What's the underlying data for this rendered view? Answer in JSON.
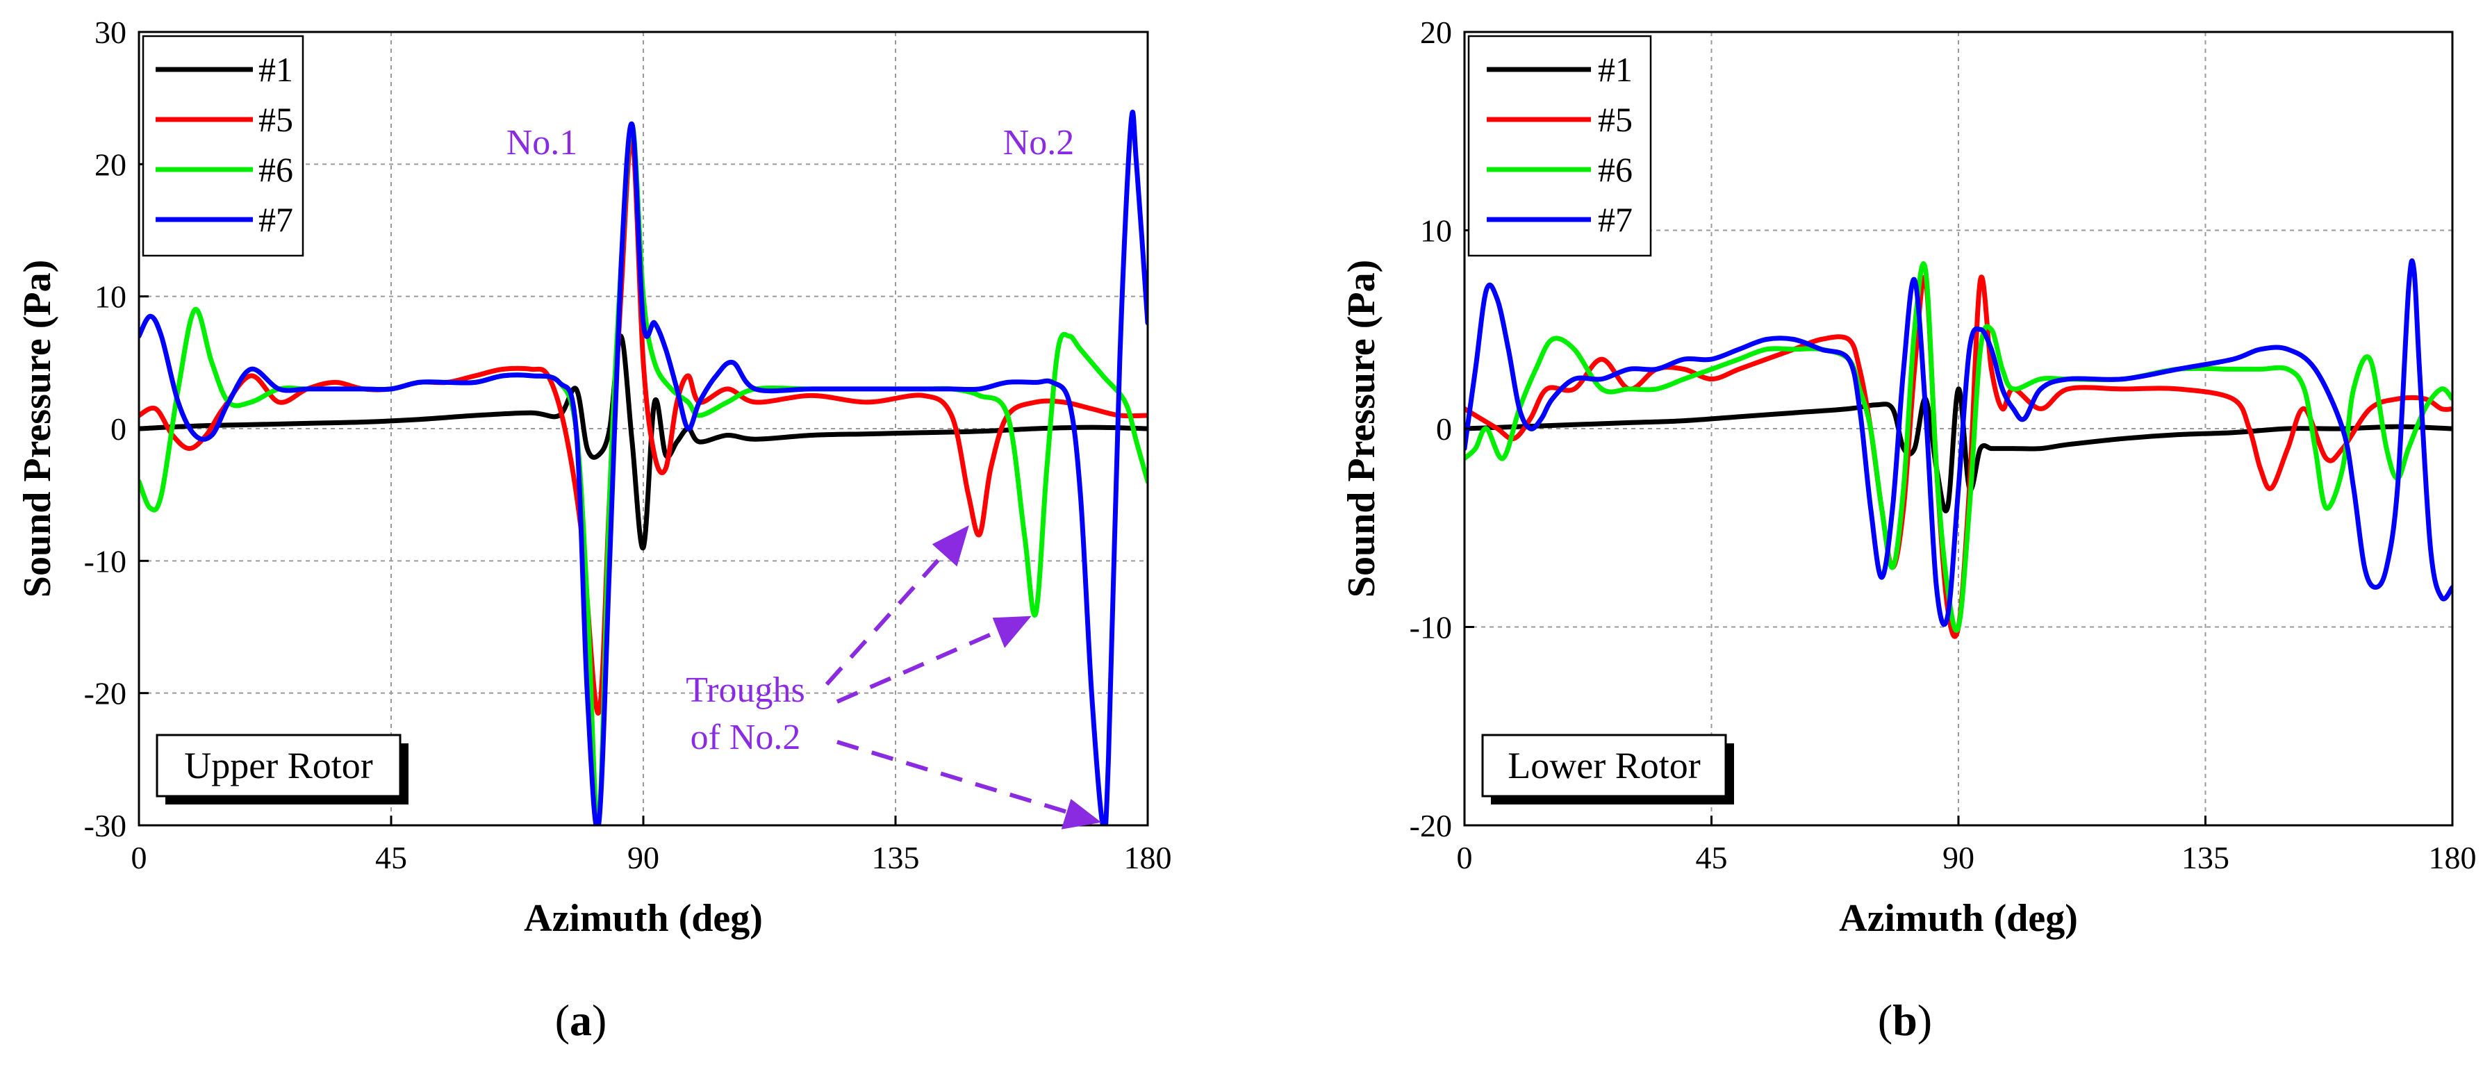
{
  "figure": {
    "caption_a": {
      "open": "(",
      "letter": "a",
      "close": ")"
    },
    "caption_b": {
      "open": "(",
      "letter": "b",
      "close": ")"
    }
  },
  "chart_data": [
    {
      "type": "line",
      "panel": "a",
      "title": "Upper Rotor",
      "xlabel": "Azimuth (deg)",
      "ylabel": "Sound Pressure (Pa)",
      "xlim": [
        0,
        180
      ],
      "ylim": [
        -30,
        30
      ],
      "xticks": [
        0,
        45,
        90,
        135,
        180
      ],
      "yticks": [
        -30,
        -20,
        -10,
        0,
        10,
        20,
        30
      ],
      "grid": true,
      "legend": "top-left",
      "annotations": {
        "peak1": "No.1",
        "peak2": "No.2",
        "troughs_line1": "Troughs",
        "troughs_line2": "of No.2"
      },
      "series": [
        {
          "name": "#1",
          "color": "#000000",
          "x": [
            0,
            10,
            20,
            30,
            40,
            50,
            60,
            70,
            75,
            78,
            80,
            82,
            84,
            86,
            88,
            90,
            92,
            94,
            96,
            98,
            100,
            105,
            110,
            120,
            130,
            140,
            150,
            160,
            170,
            180
          ],
          "y": [
            0,
            0.2,
            0.3,
            0.4,
            0.5,
            0.7,
            1.0,
            1.2,
            1.0,
            3.0,
            -1.5,
            -2,
            0,
            7,
            -1,
            -9,
            2,
            -2,
            -1,
            0,
            -1,
            -0.5,
            -0.8,
            -0.5,
            -0.4,
            -0.3,
            -0.2,
            0,
            0.1,
            0
          ]
        },
        {
          "name": "#5",
          "color": "#ff0000",
          "x": [
            0,
            3,
            6,
            9,
            12,
            15,
            20,
            25,
            30,
            35,
            40,
            45,
            50,
            55,
            60,
            65,
            70,
            73,
            76,
            79,
            82,
            84,
            86,
            88,
            90,
            92,
            94,
            96,
            98,
            100,
            105,
            110,
            120,
            130,
            140,
            145,
            148,
            150,
            152,
            155,
            160,
            165,
            170,
            175,
            180
          ],
          "y": [
            1,
            1.5,
            -0.5,
            -1.5,
            -0.5,
            1.5,
            4,
            2,
            3,
            3.5,
            3,
            3,
            3.5,
            3.5,
            4,
            4.5,
            4.5,
            4,
            0,
            -8,
            -21.5,
            -5,
            10,
            22,
            5,
            -2,
            -3,
            2,
            4,
            2,
            3,
            2,
            2.5,
            2,
            2.5,
            1,
            -5,
            -8,
            -3,
            1,
            2,
            2,
            1.5,
            1,
            1
          ]
        },
        {
          "name": "#6",
          "color": "#00ee00",
          "x": [
            0,
            2,
            4,
            7,
            10,
            13,
            16,
            20,
            25,
            30,
            35,
            40,
            45,
            50,
            55,
            60,
            65,
            70,
            75,
            78,
            80,
            82,
            84,
            86,
            88,
            90,
            92,
            95,
            98,
            100,
            105,
            110,
            120,
            130,
            140,
            145,
            150,
            155,
            158,
            160,
            162,
            164,
            166,
            168,
            172,
            176,
            178,
            180
          ],
          "y": [
            -4,
            -6,
            -5,
            3,
            9,
            5,
            2,
            2,
            3,
            3,
            3,
            3,
            3,
            3.5,
            3.5,
            3.5,
            4,
            4,
            3.5,
            0,
            -13,
            -30,
            -5,
            12,
            23,
            10,
            5,
            3,
            2,
            1,
            2,
            3,
            3,
            3,
            3,
            3,
            2.5,
            1,
            -8,
            -14,
            -3,
            6,
            7,
            6,
            4,
            2,
            -1,
            -4
          ]
        },
        {
          "name": "#7",
          "color": "#0000ff",
          "x": [
            0,
            2,
            4,
            7,
            10,
            13,
            16,
            20,
            25,
            30,
            35,
            40,
            45,
            50,
            55,
            60,
            65,
            70,
            75,
            78,
            80,
            82,
            84,
            86,
            88,
            90,
            92,
            94,
            96,
            98,
            100,
            103,
            106,
            110,
            120,
            130,
            140,
            145,
            150,
            155,
            160,
            163,
            166,
            168,
            170,
            172,
            173,
            175,
            177,
            178,
            180
          ],
          "y": [
            7,
            8.5,
            7,
            2,
            -0.5,
            -0.5,
            2,
            4.5,
            3,
            3,
            3,
            3,
            3,
            3.5,
            3.5,
            3.5,
            4,
            4,
            3.5,
            0,
            -20,
            -30,
            -10,
            12,
            23,
            8,
            8,
            6,
            3,
            0,
            2,
            4,
            5,
            3,
            3,
            3,
            3,
            3,
            3,
            3.5,
            3.5,
            3.5,
            2,
            -5,
            -20,
            -30,
            -25,
            5,
            23,
            20,
            8
          ]
        }
      ]
    },
    {
      "type": "line",
      "panel": "b",
      "title": "Lower Rotor",
      "xlabel": "Azimuth (deg)",
      "ylabel": "Sound Pressure (Pa)",
      "xlim": [
        0,
        180
      ],
      "ylim": [
        -20,
        20
      ],
      "xticks": [
        0,
        45,
        90,
        135,
        180
      ],
      "yticks": [
        -20,
        -10,
        0,
        10,
        20
      ],
      "grid": true,
      "legend": "top-left",
      "series": [
        {
          "name": "#1",
          "color": "#000000",
          "x": [
            0,
            10,
            20,
            30,
            40,
            50,
            60,
            70,
            75,
            78,
            80,
            82,
            84,
            86,
            88,
            90,
            92,
            94,
            96,
            98,
            100,
            105,
            110,
            120,
            130,
            140,
            150,
            160,
            170,
            180
          ],
          "y": [
            0,
            0.1,
            0.2,
            0.3,
            0.4,
            0.6,
            0.8,
            1.0,
            1.2,
            1.0,
            -1,
            -1,
            1.5,
            -2,
            -4,
            2,
            -3,
            -1,
            -1,
            -1,
            -1,
            -1,
            -0.8,
            -0.5,
            -0.3,
            -0.2,
            0,
            0,
            0.1,
            0
          ]
        },
        {
          "name": "#5",
          "color": "#ff0000",
          "x": [
            0,
            3,
            6,
            9,
            12,
            15,
            20,
            25,
            30,
            35,
            40,
            45,
            50,
            55,
            60,
            65,
            70,
            72,
            74,
            76,
            78,
            80,
            82,
            84,
            86,
            88,
            90,
            92,
            94,
            96,
            98,
            100,
            105,
            110,
            120,
            130,
            140,
            143,
            145,
            147,
            150,
            153,
            157,
            160,
            165,
            170,
            175,
            178,
            180
          ],
          "y": [
            1,
            0.5,
            0,
            -0.5,
            0.5,
            2,
            2,
            3.5,
            2,
            3,
            3,
            2.5,
            3,
            3.5,
            4,
            4.5,
            4.5,
            3,
            0,
            -4,
            -7,
            -4,
            3,
            7.5,
            -2,
            -9,
            -10,
            -3,
            7.5,
            3,
            1,
            2,
            1,
            2,
            2,
            2,
            1.5,
            0,
            -2,
            -3,
            -1,
            1,
            -1.5,
            -1,
            1,
            1.5,
            1.5,
            1,
            1
          ]
        },
        {
          "name": "#6",
          "color": "#00ee00",
          "x": [
            0,
            2,
            4,
            7,
            10,
            13,
            16,
            20,
            25,
            30,
            35,
            40,
            45,
            50,
            55,
            60,
            65,
            70,
            72,
            74,
            76,
            78,
            80,
            82,
            84,
            86,
            88,
            90,
            92,
            94,
            96,
            98,
            100,
            105,
            110,
            120,
            130,
            140,
            145,
            150,
            153,
            155,
            157,
            160,
            162,
            165,
            168,
            170,
            172,
            175,
            178,
            180
          ],
          "y": [
            -1.5,
            -1,
            0,
            -1.5,
            1,
            3,
            4.5,
            4,
            2,
            2,
            2,
            2.5,
            3,
            3.5,
            4,
            4,
            4,
            3.5,
            2,
            0,
            -4,
            -7,
            -3,
            5,
            8,
            -2,
            -8,
            -10,
            -4,
            4,
            5,
            3,
            2,
            2.5,
            2.5,
            2.5,
            3,
            3,
            3,
            3,
            2,
            -1,
            -4,
            -2,
            2,
            3.5,
            -1,
            -2.5,
            -1,
            1,
            2,
            1.5
          ]
        },
        {
          "name": "#7",
          "color": "#0000ff",
          "x": [
            0,
            2,
            4,
            6,
            8,
            10,
            12,
            14,
            16,
            20,
            25,
            30,
            35,
            40,
            45,
            50,
            55,
            60,
            65,
            70,
            72,
            74,
            76,
            78,
            80,
            82,
            84,
            86,
            88,
            90,
            92,
            94,
            96,
            98,
            100,
            102,
            105,
            110,
            120,
            130,
            140,
            145,
            150,
            155,
            160,
            162,
            164,
            166,
            168,
            170,
            172,
            173,
            174,
            176,
            178,
            180
          ],
          "y": [
            -1,
            3,
            7,
            6.5,
            4,
            1,
            0,
            0.5,
            1.5,
            2.5,
            2.5,
            3,
            3,
            3.5,
            3.5,
            4,
            4.5,
            4.5,
            4,
            3.5,
            1,
            -4,
            -7.5,
            -4,
            3,
            7.5,
            1,
            -8,
            -9.5,
            -3,
            4,
            5,
            4,
            2,
            1,
            0.5,
            2,
            2.5,
            2.5,
            3,
            3.5,
            4,
            4,
            3,
            0,
            -3,
            -7,
            -8,
            -7,
            -3,
            7,
            8,
            3,
            -6,
            -8.5,
            -8
          ]
        }
      ]
    }
  ]
}
